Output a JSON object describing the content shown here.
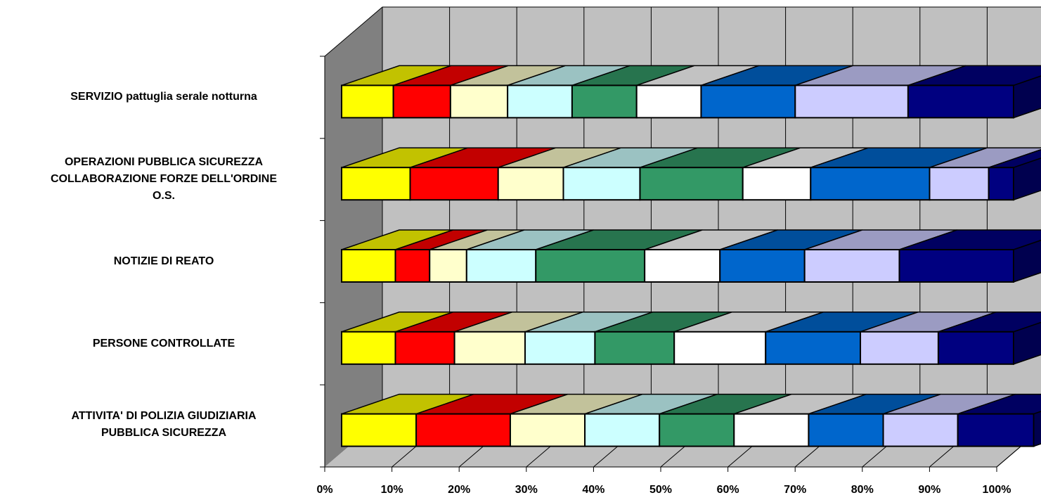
{
  "chart_data": {
    "type": "bar",
    "orientation": "horizontal",
    "stacking": "percent",
    "three_d": true,
    "categories": [
      "SERVIZIO pattuglia serale notturna",
      "OPERAZIONI PUBBLICA SICUREZZA\nCOLLABORAZIONE FORZE DELL'ORDINE\nO.S.",
      "NOTIZIE DI REATO",
      "PERSONE CONTROLLATE",
      "ATTIVITA' DI POLIZIA GIUDIZIARIA\nPUBBLICA SICUREZZA"
    ],
    "x_ticks": [
      "0%",
      "10%",
      "20%",
      "30%",
      "40%",
      "50%",
      "60%",
      "70%",
      "80%",
      "90%",
      "100%"
    ],
    "xlim": [
      0,
      100
    ],
    "grid": true,
    "legend": "none",
    "series_colors": [
      "#ffff00",
      "#ff0000",
      "#ffffcc",
      "#ccffff",
      "#339966",
      "#ffffff",
      "#0066cc",
      "#ccccff",
      "#000080"
    ],
    "series": [
      {
        "values": [
          7.7,
          10.2,
          8.0,
          8.0,
          11.1
        ]
      },
      {
        "values": [
          8.5,
          13.1,
          5.1,
          8.8,
          14.0
        ]
      },
      {
        "values": [
          8.5,
          9.7,
          5.5,
          10.5,
          11.1
        ]
      },
      {
        "values": [
          9.6,
          11.4,
          10.3,
          10.4,
          11.1
        ]
      },
      {
        "values": [
          9.6,
          15.3,
          16.2,
          11.8,
          11.1
        ]
      },
      {
        "values": [
          9.6,
          10.1,
          11.2,
          13.6,
          11.1
        ]
      },
      {
        "values": [
          14.0,
          17.7,
          12.6,
          14.1,
          11.1
        ]
      },
      {
        "values": [
          16.8,
          8.8,
          14.1,
          11.6,
          11.1
        ]
      },
      {
        "values": [
          15.7,
          3.7,
          17.0,
          11.2,
          11.3
        ]
      }
    ]
  }
}
